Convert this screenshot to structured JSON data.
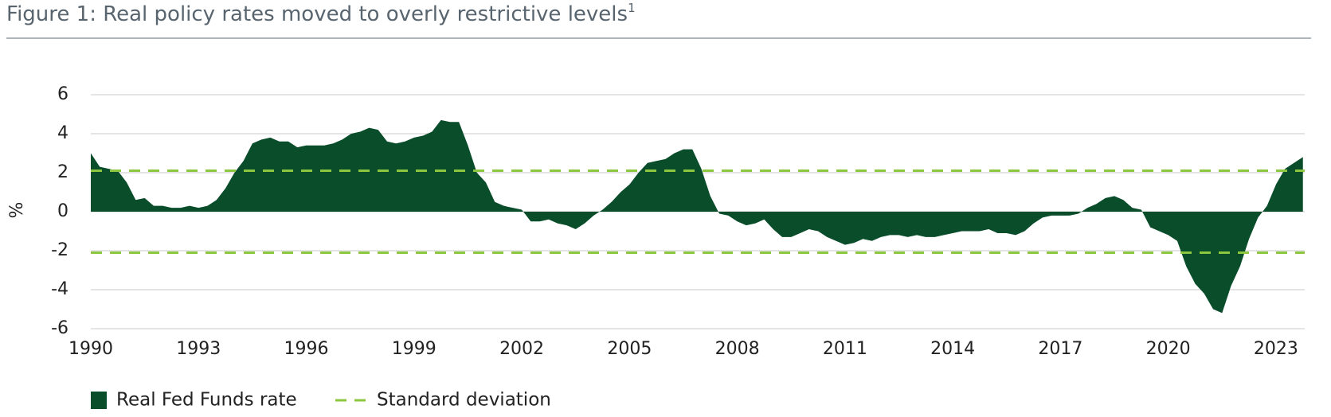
{
  "chart_data": {
    "type": "area",
    "title": "Figure 1: Real policy rates moved to overly restrictive levels",
    "title_note": "1",
    "y_label": "%",
    "x": [
      1990.0,
      1990.25,
      1990.5,
      1990.75,
      1991.0,
      1991.25,
      1991.5,
      1991.75,
      1992.0,
      1992.25,
      1992.5,
      1992.75,
      1993.0,
      1993.25,
      1993.5,
      1993.75,
      1994.0,
      1994.25,
      1994.5,
      1994.75,
      1995.0,
      1995.25,
      1995.5,
      1995.75,
      1996.0,
      1996.25,
      1996.5,
      1996.75,
      1997.0,
      1997.25,
      1997.5,
      1997.75,
      1998.0,
      1998.25,
      1998.5,
      1998.75,
      1999.0,
      1999.25,
      1999.5,
      1999.75,
      2000.0,
      2000.25,
      2000.5,
      2000.75,
      2001.0,
      2001.25,
      2001.5,
      2001.75,
      2002.0,
      2002.25,
      2002.5,
      2002.75,
      2003.0,
      2003.25,
      2003.5,
      2003.75,
      2004.0,
      2004.25,
      2004.5,
      2004.75,
      2005.0,
      2005.25,
      2005.5,
      2005.75,
      2006.0,
      2006.25,
      2006.5,
      2006.75,
      2007.0,
      2007.25,
      2007.5,
      2007.75,
      2008.0,
      2008.25,
      2008.5,
      2008.75,
      2009.0,
      2009.25,
      2009.5,
      2009.75,
      2010.0,
      2010.25,
      2010.5,
      2010.75,
      2011.0,
      2011.25,
      2011.5,
      2011.75,
      2012.0,
      2012.25,
      2012.5,
      2012.75,
      2013.0,
      2013.25,
      2013.5,
      2013.75,
      2014.0,
      2014.25,
      2014.5,
      2014.75,
      2015.0,
      2015.25,
      2015.5,
      2015.75,
      2016.0,
      2016.25,
      2016.5,
      2016.75,
      2017.0,
      2017.25,
      2017.5,
      2017.75,
      2018.0,
      2018.25,
      2018.5,
      2018.75,
      2019.0,
      2019.25,
      2019.5,
      2019.75,
      2020.0,
      2020.25,
      2020.5,
      2020.75,
      2021.0,
      2021.25,
      2021.5,
      2021.75,
      2022.0,
      2022.25,
      2022.5,
      2022.75,
      2023.0,
      2023.25,
      2023.5,
      2023.75
    ],
    "series": [
      {
        "name": "Real Fed Funds rate",
        "color": "#0a4d2b",
        "values": [
          3.0,
          2.3,
          2.2,
          2.1,
          1.5,
          0.6,
          0.7,
          0.3,
          0.3,
          0.2,
          0.2,
          0.3,
          0.2,
          0.3,
          0.6,
          1.2,
          2.0,
          2.6,
          3.5,
          3.7,
          3.8,
          3.6,
          3.6,
          3.3,
          3.4,
          3.4,
          3.4,
          3.5,
          3.7,
          4.0,
          4.1,
          4.3,
          4.2,
          3.6,
          3.5,
          3.6,
          3.8,
          3.9,
          4.1,
          4.7,
          4.6,
          4.6,
          3.4,
          2.0,
          1.5,
          0.5,
          0.3,
          0.2,
          0.1,
          -0.5,
          -0.5,
          -0.4,
          -0.6,
          -0.7,
          -0.9,
          -0.6,
          -0.2,
          0.1,
          0.5,
          1.0,
          1.4,
          2.0,
          2.5,
          2.6,
          2.7,
          3.0,
          3.2,
          3.2,
          2.2,
          0.8,
          -0.1,
          -0.2,
          -0.5,
          -0.7,
          -0.6,
          -0.4,
          -0.9,
          -1.3,
          -1.3,
          -1.1,
          -0.9,
          -1.0,
          -1.3,
          -1.5,
          -1.7,
          -1.6,
          -1.4,
          -1.5,
          -1.3,
          -1.2,
          -1.2,
          -1.3,
          -1.2,
          -1.3,
          -1.3,
          -1.2,
          -1.1,
          -1.0,
          -1.0,
          -1.0,
          -0.9,
          -1.1,
          -1.1,
          -1.2,
          -1.0,
          -0.6,
          -0.3,
          -0.2,
          -0.2,
          -0.2,
          -0.1,
          0.2,
          0.4,
          0.7,
          0.8,
          0.6,
          0.2,
          0.1,
          -0.8,
          -1.0,
          -1.2,
          -1.5,
          -2.8,
          -3.7,
          -4.2,
          -5.0,
          -5.2,
          -3.8,
          -2.8,
          -1.4,
          -0.3,
          0.3,
          1.4,
          2.2,
          2.5,
          2.8
        ]
      }
    ],
    "std_dev": {
      "name": "Standard deviation",
      "color": "#8dc63f",
      "values": [
        2.1,
        -2.1
      ]
    },
    "xlim": [
      1990,
      2023.8
    ],
    "xticks": [
      1990,
      1993,
      1996,
      1999,
      2002,
      2005,
      2008,
      2011,
      2014,
      2017,
      2020,
      2023
    ],
    "ylim": [
      -6,
      6
    ],
    "yticks": [
      -6,
      -4,
      -2,
      0,
      2,
      4,
      6
    ],
    "grid": true
  }
}
